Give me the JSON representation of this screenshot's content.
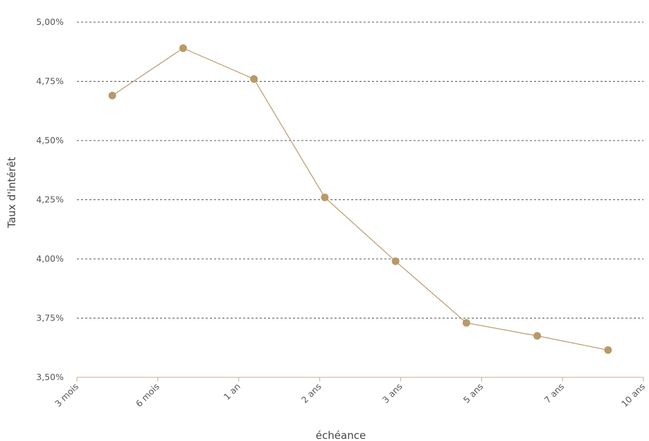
{
  "chart_data": {
    "type": "line",
    "title": "",
    "xlabel": "échéance",
    "ylabel": "Taux d'intérêt",
    "categories": [
      "3 mois",
      "6 mois",
      "1 an",
      "2 ans",
      "3 ans",
      "5 ans",
      "7 ans",
      "10 ans"
    ],
    "series": [
      {
        "values": [
          4.69,
          4.89,
          4.76,
          4.26,
          3.99,
          3.73,
          3.675,
          3.615
        ]
      }
    ],
    "ylim": [
      3.5,
      5.0
    ],
    "yticks": [
      "3,50%",
      "3,75%",
      "4,00%",
      "4,25%",
      "4,50%",
      "4,75%",
      "5,00%"
    ],
    "ytick_values": [
      3.5,
      3.75,
      4.0,
      4.25,
      4.5,
      4.75,
      5.0
    ],
    "grid": true,
    "colors": {
      "series": "#b89968",
      "axis": "#c8ae86",
      "grid": "#555555"
    }
  }
}
